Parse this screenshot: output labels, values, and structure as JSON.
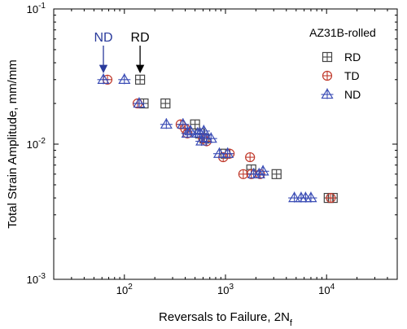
{
  "chart_data": {
    "type": "scatter",
    "xlabel": "Reversals to Failure, 2N",
    "xlabel_sub": "f",
    "ylabel": "Total Strain Amplitude, mm/mm",
    "x_scale": "log",
    "y_scale": "log",
    "xlim": [
      20,
      50000
    ],
    "ylim": [
      0.001,
      0.1
    ],
    "x_ticks": [
      {
        "value": 100,
        "base": "10",
        "exp": "2"
      },
      {
        "value": 1000,
        "base": "10",
        "exp": "3"
      },
      {
        "value": 10000,
        "base": "10",
        "exp": "4"
      }
    ],
    "y_ticks": [
      {
        "value": 0.001,
        "base": "10",
        "exp": "-3"
      },
      {
        "value": 0.01,
        "base": "10",
        "exp": "-2"
      },
      {
        "value": 0.1,
        "base": "10",
        "exp": "-1"
      }
    ],
    "grid": false,
    "legend": {
      "title": "AZ31B-rolled",
      "position": "top-right"
    },
    "series": [
      {
        "name": "RD",
        "marker": "square-plus",
        "color": "#444444",
        "x": [
          143,
          155,
          255,
          500,
          560,
          620,
          1000,
          1800,
          3200,
          10500,
          11500
        ],
        "y": [
          0.03,
          0.02,
          0.02,
          0.014,
          0.012,
          0.011,
          0.0085,
          0.0065,
          0.006,
          0.004,
          0.004
        ]
      },
      {
        "name": "TD",
        "marker": "circle-plus",
        "color": "#c0392b",
        "x": [
          68,
          135,
          360,
          400,
          420,
          600,
          650,
          950,
          1100,
          1750,
          1500,
          1800,
          2200,
          11000
        ],
        "y": [
          0.03,
          0.02,
          0.014,
          0.013,
          0.012,
          0.011,
          0.0105,
          0.008,
          0.0085,
          0.008,
          0.006,
          0.006,
          0.006,
          0.004
        ]
      },
      {
        "name": "ND",
        "marker": "triangle-plus",
        "color": "#3a4cb5",
        "x": [
          62,
          100,
          140,
          260,
          380,
          420,
          450,
          530,
          560,
          580,
          610,
          650,
          720,
          870,
          1050,
          1900,
          2150,
          2350,
          4800,
          5600,
          6200,
          7000
        ],
        "y": [
          0.03,
          0.03,
          0.02,
          0.014,
          0.014,
          0.012,
          0.0125,
          0.012,
          0.012,
          0.0105,
          0.0125,
          0.011,
          0.011,
          0.0085,
          0.0085,
          0.006,
          0.006,
          0.0063,
          0.004,
          0.004,
          0.004,
          0.004
        ]
      }
    ],
    "annotations": [
      {
        "text": "ND",
        "x": 62,
        "color": "#2a3b9c"
      },
      {
        "text": "RD",
        "x": 143,
        "color": "#000000"
      }
    ]
  }
}
